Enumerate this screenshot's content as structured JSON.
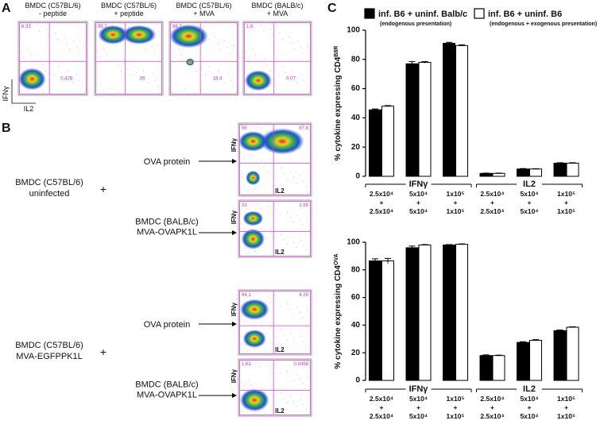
{
  "panel_a": {
    "label": "A",
    "y_axis": "IFNγ",
    "x_axis": "IL2",
    "plots": [
      {
        "title": [
          "BMDC (C57BL/6)",
          "- peptide"
        ],
        "numbers": [
          "6.33",
          "0.428"
        ]
      },
      {
        "title": [
          "BMDC (C57BL/6)",
          "+ peptide"
        ],
        "numbers": [
          "99.7",
          "39"
        ]
      },
      {
        "title": [
          "BMDC (C57BL/6)",
          "+ MVA"
        ],
        "numbers": [
          "96.7",
          "18.4"
        ]
      },
      {
        "title": [
          "BMDC (BALB/c)",
          "+ MVA"
        ],
        "numbers": [
          "1.8",
          "0.07"
        ]
      }
    ]
  },
  "panel_b": {
    "label": "B",
    "y_axis": "IFNγ",
    "x_axis": "IL2",
    "donors": [
      {
        "lines": [
          "BMDC (C57BL/6)",
          "uninfected"
        ],
        "plus": "+"
      },
      {
        "lines": [
          "BMDC (C57BL/6)",
          "MVA-EGFPPK1L"
        ],
        "plus": "+"
      }
    ],
    "targets": [
      {
        "lines": [
          "OVA protein"
        ],
        "numbers": [
          "56",
          "87.8"
        ]
      },
      {
        "lines": [
          "BMDC (BALB/c)",
          "MVA-OVAPK1L"
        ],
        "numbers": [
          "33",
          "2.89"
        ]
      },
      {
        "lines": [
          "OVA protein"
        ],
        "numbers": [
          "94.1",
          "4.29"
        ]
      },
      {
        "lines": [
          "BMDC (BALB/c)",
          "MVA-OVAPK1L"
        ],
        "numbers": [
          "1.62",
          "0.0458"
        ]
      }
    ]
  },
  "panel_c_label": "C",
  "chart_data": [
    {
      "type": "bar",
      "ylabel": "% cytokine expressing CD4",
      "ylabel_sup": "B8R",
      "ylim": [
        0,
        100
      ],
      "yticks": [
        0,
        20,
        40,
        60,
        80,
        100
      ],
      "groups": [
        "IFNγ",
        "IL2"
      ],
      "categories": [
        [
          "2.5x10⁴",
          "+",
          "2.5x10⁴"
        ],
        [
          "5x10⁴",
          "+",
          "5x10⁴"
        ],
        [
          "1x10⁵",
          "+",
          "1x10⁵"
        ],
        [
          "2.5x10⁴",
          "+",
          "2.5x10⁴"
        ],
        [
          "5x10⁴",
          "+",
          "5x10⁴"
        ],
        [
          "1x10⁵",
          "+",
          "1x10⁵"
        ]
      ],
      "series": [
        {
          "name": "inf. B6 + uninf. Balb/c",
          "note": "(endogenous presentation)",
          "color": "#000000",
          "values": [
            45.5,
            77,
            91,
            2,
            5,
            9
          ],
          "errors": [
            0.6,
            1.5,
            0.7,
            0.2,
            0.3,
            0.3
          ]
        },
        {
          "name": "inf. B6 + uninf. B6",
          "note": "(endogenous + exogenous presentation)",
          "color": "#ffffff",
          "values": [
            48,
            78,
            89.5,
            2,
            5,
            9
          ],
          "errors": [
            0.4,
            0.5,
            0.5,
            0.2,
            0.2,
            0.3
          ]
        }
      ]
    },
    {
      "type": "bar",
      "ylabel": "% cytokine expressing CD4",
      "ylabel_sup": "OVA",
      "ylim": [
        0,
        100
      ],
      "yticks": [
        0,
        20,
        40,
        60,
        80,
        100
      ],
      "groups": [
        "IFNγ",
        "IL2"
      ],
      "categories": [
        [
          "2.5x10⁴",
          "+",
          "2.5x10⁴"
        ],
        [
          "5x10⁴",
          "+",
          "5x10⁴"
        ],
        [
          "1x10⁵",
          "+",
          "1x10⁵"
        ],
        [
          "2.5x10⁴",
          "+",
          "2.5x10⁴"
        ],
        [
          "5x10⁴",
          "+",
          "5x10⁴"
        ],
        [
          "1x10⁵",
          "+",
          "1x10⁵"
        ]
      ],
      "series": [
        {
          "color": "#000000",
          "values": [
            86.5,
            96,
            98,
            18,
            27.5,
            36
          ],
          "errors": [
            1.5,
            1.2,
            0.3,
            0.5,
            0.5,
            0.5
          ]
        },
        {
          "color": "#ffffff",
          "values": [
            86.5,
            98,
            98.5,
            18,
            29,
            38.5
          ],
          "errors": [
            1.8,
            0.3,
            0.3,
            0.3,
            0.5,
            0.3
          ]
        }
      ]
    }
  ]
}
